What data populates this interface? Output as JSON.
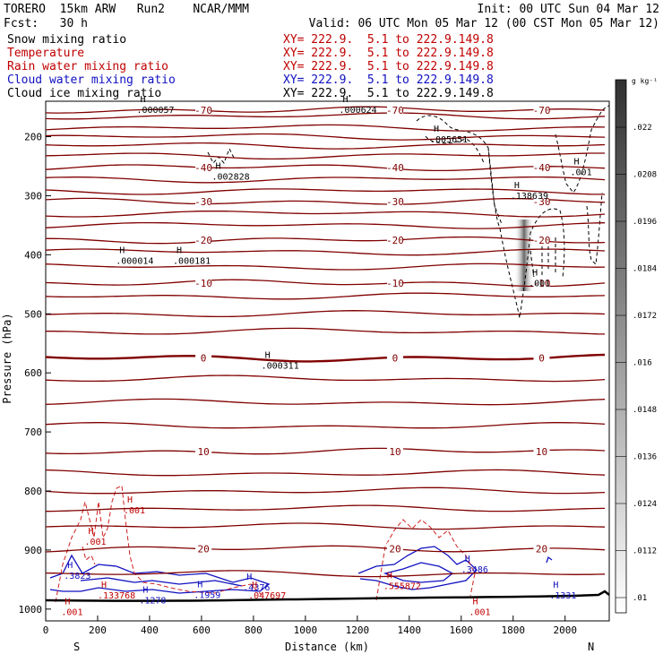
{
  "header": {
    "line1_left": "TORERO  15km ARW   Run2    NCAR/MMM",
    "line1_right": "Init: 00 UTC Sun 04 Mar 12",
    "line2_left": "Fcst:   30 h",
    "line2_right": "Valid: 06 UTC Mon 05 Mar 12 (00 CST Mon 05 Mar 12)"
  },
  "fields": [
    {
      "name": "Snow mixing ratio",
      "xy": "XY= 222.9.  5.1 to 222.9.149.8",
      "color": "#000000",
      "xy_color": "#c00000"
    },
    {
      "name": "Temperature",
      "xy": "XY= 222.9.  5.1 to 222.9.149.8",
      "color": "#c00000",
      "xy_color": "#c00000"
    },
    {
      "name": "Rain water mixing ratio",
      "xy": "XY= 222.9.  5.1 to 222.9.149.8",
      "color": "#c00000",
      "xy_color": "#c00000"
    },
    {
      "name": "Cloud water mixing ratio",
      "xy": "XY= 222.9.  5.1 to 222.9.149.8",
      "color": "#1010c0",
      "xy_color": "#1010c0"
    },
    {
      "name": "Cloud ice mixing ratio",
      "xy": "XY= 222.9.  5.1 to 222.9.149.8",
      "color": "#000000",
      "xy_color": "#000000"
    }
  ],
  "chart_data": {
    "type": "contour-cross-section",
    "xlabel": "Distance (km)",
    "ylabel": "Pressure (hPa)",
    "xlim": [
      0,
      2170
    ],
    "ylim": [
      1020,
      140
    ],
    "x_ticks": [
      "0",
      "200",
      "400",
      "600",
      "800",
      "1000",
      "1200",
      "1400",
      "1600",
      "1800",
      "2000"
    ],
    "y_ticks": [
      "200",
      "300",
      "400",
      "500",
      "600",
      "700",
      "800",
      "900",
      "1000"
    ],
    "x_end_labels": {
      "left": "S",
      "right": "N"
    },
    "colorbar": {
      "unit": "g kg⁻¹",
      "ticks": [
        ".022",
        ".0208",
        ".0196",
        ".0184",
        ".0172",
        ".016",
        ".0148",
        ".0136",
        ".0124",
        ".0112",
        ".01"
      ]
    },
    "temperature_contours": [
      {
        "label": "-70",
        "pressure": 155
      },
      {
        "label": "-40",
        "pressure": 252
      },
      {
        "label": "-30",
        "pressure": 310
      },
      {
        "label": "-20",
        "pressure": 375
      },
      {
        "label": "-10",
        "pressure": 448
      },
      {
        "label": "0",
        "pressure": 575
      },
      {
        "label": "10",
        "pressure": 733
      },
      {
        "label": "20",
        "pressure": 898
      }
    ],
    "annotations": [
      {
        "text": ".000057",
        "x": 350,
        "p": 157,
        "color": "#000000"
      },
      {
        "text": ".000624",
        "x": 1130,
        "p": 157,
        "color": "#000000"
      },
      {
        "text": ".005651",
        "x": 1480,
        "p": 207,
        "color": "#000000"
      },
      {
        "text": ".002828",
        "x": 640,
        "p": 270,
        "color": "#000000"
      },
      {
        "text": ".138639",
        "x": 1790,
        "p": 302,
        "color": "#000000"
      },
      {
        "text": ".001",
        "x": 2020,
        "p": 262,
        "color": "#000000"
      },
      {
        "text": ".000014",
        "x": 270,
        "p": 412,
        "color": "#000000"
      },
      {
        "text": ".000181",
        "x": 490,
        "p": 412,
        "color": "#000000"
      },
      {
        "text": ".001",
        "x": 1860,
        "p": 450,
        "color": "#000000"
      },
      {
        "text": ".000311",
        "x": 830,
        "p": 590,
        "color": "#000000"
      },
      {
        "text": ".001",
        "x": 300,
        "p": 835,
        "color": "#c00000"
      },
      {
        "text": ".001",
        "x": 150,
        "p": 888,
        "color": "#c00000"
      },
      {
        "text": ".3823",
        "x": 70,
        "p": 946,
        "color": "#1010c0"
      },
      {
        "text": ".133768",
        "x": 200,
        "p": 979,
        "color": "#c00000"
      },
      {
        "text": ".1278",
        "x": 360,
        "p": 987,
        "color": "#1010c0"
      },
      {
        "text": ".1959",
        "x": 570,
        "p": 978,
        "color": "#1010c0"
      },
      {
        "text": ".4376",
        "x": 760,
        "p": 965,
        "color": "#1010c0"
      },
      {
        "text": ".047697",
        "x": 780,
        "p": 979,
        "color": "#c00000"
      },
      {
        "text": ".555872",
        "x": 1300,
        "p": 963,
        "color": "#c00000"
      },
      {
        "text": ".3486",
        "x": 1600,
        "p": 935,
        "color": "#1010c0"
      },
      {
        "text": ".1331",
        "x": 1940,
        "p": 979,
        "color": "#1010c0"
      },
      {
        "text": ".001",
        "x": 60,
        "p": 1007,
        "color": "#c00000"
      },
      {
        "text": ".001",
        "x": 1630,
        "p": 1007,
        "color": "#c00000"
      }
    ]
  }
}
